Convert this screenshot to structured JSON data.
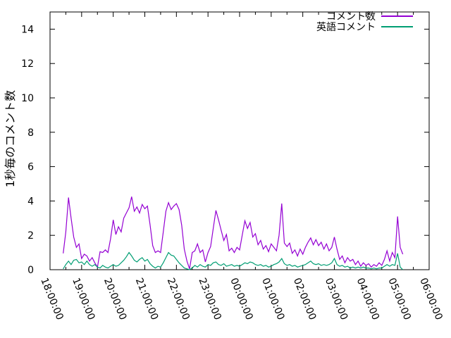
{
  "chart_data": {
    "type": "line",
    "title": "",
    "xlabel": "",
    "ylabel": "1秒毎のコメント数",
    "background": "#ffffff",
    "border_color": "#000000",
    "grid": false,
    "legend_position": "top-right-inside",
    "x_axis": {
      "unit": "time",
      "range_minutes": [
        0,
        720
      ],
      "major_tick_minutes": 60,
      "minor_tick_minutes": 30,
      "tick_labels": [
        "18:00:00",
        "19:00:00",
        "20:00:00",
        "21:00:00",
        "22:00:00",
        "23:00:00",
        "00:00:00",
        "01:00:00",
        "02:00:00",
        "03:00:00",
        "04:00:00",
        "05:00:00",
        "06:00:00"
      ],
      "label_rotation_deg": 68
    },
    "y_axis": {
      "range": [
        0,
        15
      ],
      "tick_values": [
        0,
        2,
        4,
        6,
        8,
        10,
        12,
        14
      ]
    },
    "series": [
      {
        "name": "コメント数",
        "color": "#9400D3",
        "start_min": 25,
        "step_min": 5,
        "values": [
          0.95,
          2.2,
          4.2,
          3.0,
          1.9,
          1.3,
          1.5,
          0.65,
          0.9,
          0.8,
          0.5,
          0.7,
          0.4,
          0.15,
          1.05,
          1.0,
          1.15,
          1.0,
          1.8,
          2.9,
          2.05,
          2.5,
          2.2,
          3.0,
          3.3,
          3.6,
          4.25,
          3.4,
          3.65,
          3.3,
          3.8,
          3.55,
          3.7,
          2.6,
          1.4,
          1.0,
          1.1,
          1.0,
          2.2,
          3.4,
          3.9,
          3.5,
          3.7,
          3.85,
          3.5,
          2.6,
          1.2,
          0.5,
          0.05,
          1.0,
          1.1,
          1.5,
          1.0,
          1.15,
          0.45,
          1.0,
          1.35,
          2.4,
          3.45,
          2.9,
          2.3,
          1.7,
          2.05,
          1.1,
          1.25,
          1.0,
          1.3,
          1.15,
          2.0,
          2.85,
          2.4,
          2.75,
          1.9,
          2.1,
          1.45,
          1.7,
          1.2,
          1.4,
          1.05,
          1.5,
          1.3,
          1.1,
          2.0,
          3.85,
          1.55,
          1.35,
          1.55,
          0.95,
          1.15,
          0.8,
          1.2,
          0.9,
          1.3,
          1.6,
          1.85,
          1.45,
          1.75,
          1.4,
          1.6,
          1.2,
          1.5,
          1.1,
          1.3,
          1.9,
          1.2,
          0.6,
          0.8,
          0.4,
          0.7,
          0.5,
          0.6,
          0.3,
          0.5,
          0.2,
          0.4,
          0.25,
          0.35,
          0.15,
          0.3,
          0.2,
          0.4,
          0.25,
          0.6,
          1.1,
          0.5,
          1.0,
          0.7,
          3.1,
          1.3,
          0.9
        ]
      },
      {
        "name": "英語コメント",
        "color": "#009E73",
        "start_min": 25,
        "step_min": 5,
        "values": [
          0.05,
          0.3,
          0.5,
          0.3,
          0.55,
          0.6,
          0.4,
          0.45,
          0.3,
          0.5,
          0.3,
          0.2,
          0.3,
          0.15,
          0.1,
          0.25,
          0.15,
          0.1,
          0.2,
          0.3,
          0.2,
          0.25,
          0.4,
          0.55,
          0.75,
          1.0,
          0.8,
          0.55,
          0.45,
          0.6,
          0.7,
          0.5,
          0.6,
          0.35,
          0.2,
          0.1,
          0.2,
          0.15,
          0.4,
          0.7,
          1.0,
          0.85,
          0.8,
          0.6,
          0.4,
          0.25,
          0.1,
          0.05,
          0.0,
          0.1,
          0.25,
          0.15,
          0.3,
          0.2,
          0.15,
          0.3,
          0.25,
          0.4,
          0.45,
          0.3,
          0.25,
          0.35,
          0.2,
          0.25,
          0.3,
          0.2,
          0.25,
          0.2,
          0.3,
          0.4,
          0.35,
          0.45,
          0.4,
          0.3,
          0.25,
          0.3,
          0.2,
          0.25,
          0.15,
          0.2,
          0.3,
          0.35,
          0.45,
          0.65,
          0.35,
          0.25,
          0.3,
          0.2,
          0.25,
          0.15,
          0.2,
          0.25,
          0.3,
          0.4,
          0.5,
          0.35,
          0.3,
          0.35,
          0.25,
          0.3,
          0.25,
          0.3,
          0.4,
          0.65,
          0.3,
          0.2,
          0.25,
          0.15,
          0.2,
          0.1,
          0.15,
          0.1,
          0.15,
          0.1,
          0.15,
          0.1,
          0.1,
          0.05,
          0.1,
          0.05,
          0.1,
          0.1,
          0.2,
          0.3,
          0.2,
          0.3,
          0.25,
          0.95,
          0.15,
          0.0
        ]
      }
    ]
  },
  "legend": {
    "items": [
      {
        "label": "コメント数",
        "color": "#9400D3"
      },
      {
        "label": "英語コメント",
        "color": "#009E73"
      }
    ]
  }
}
